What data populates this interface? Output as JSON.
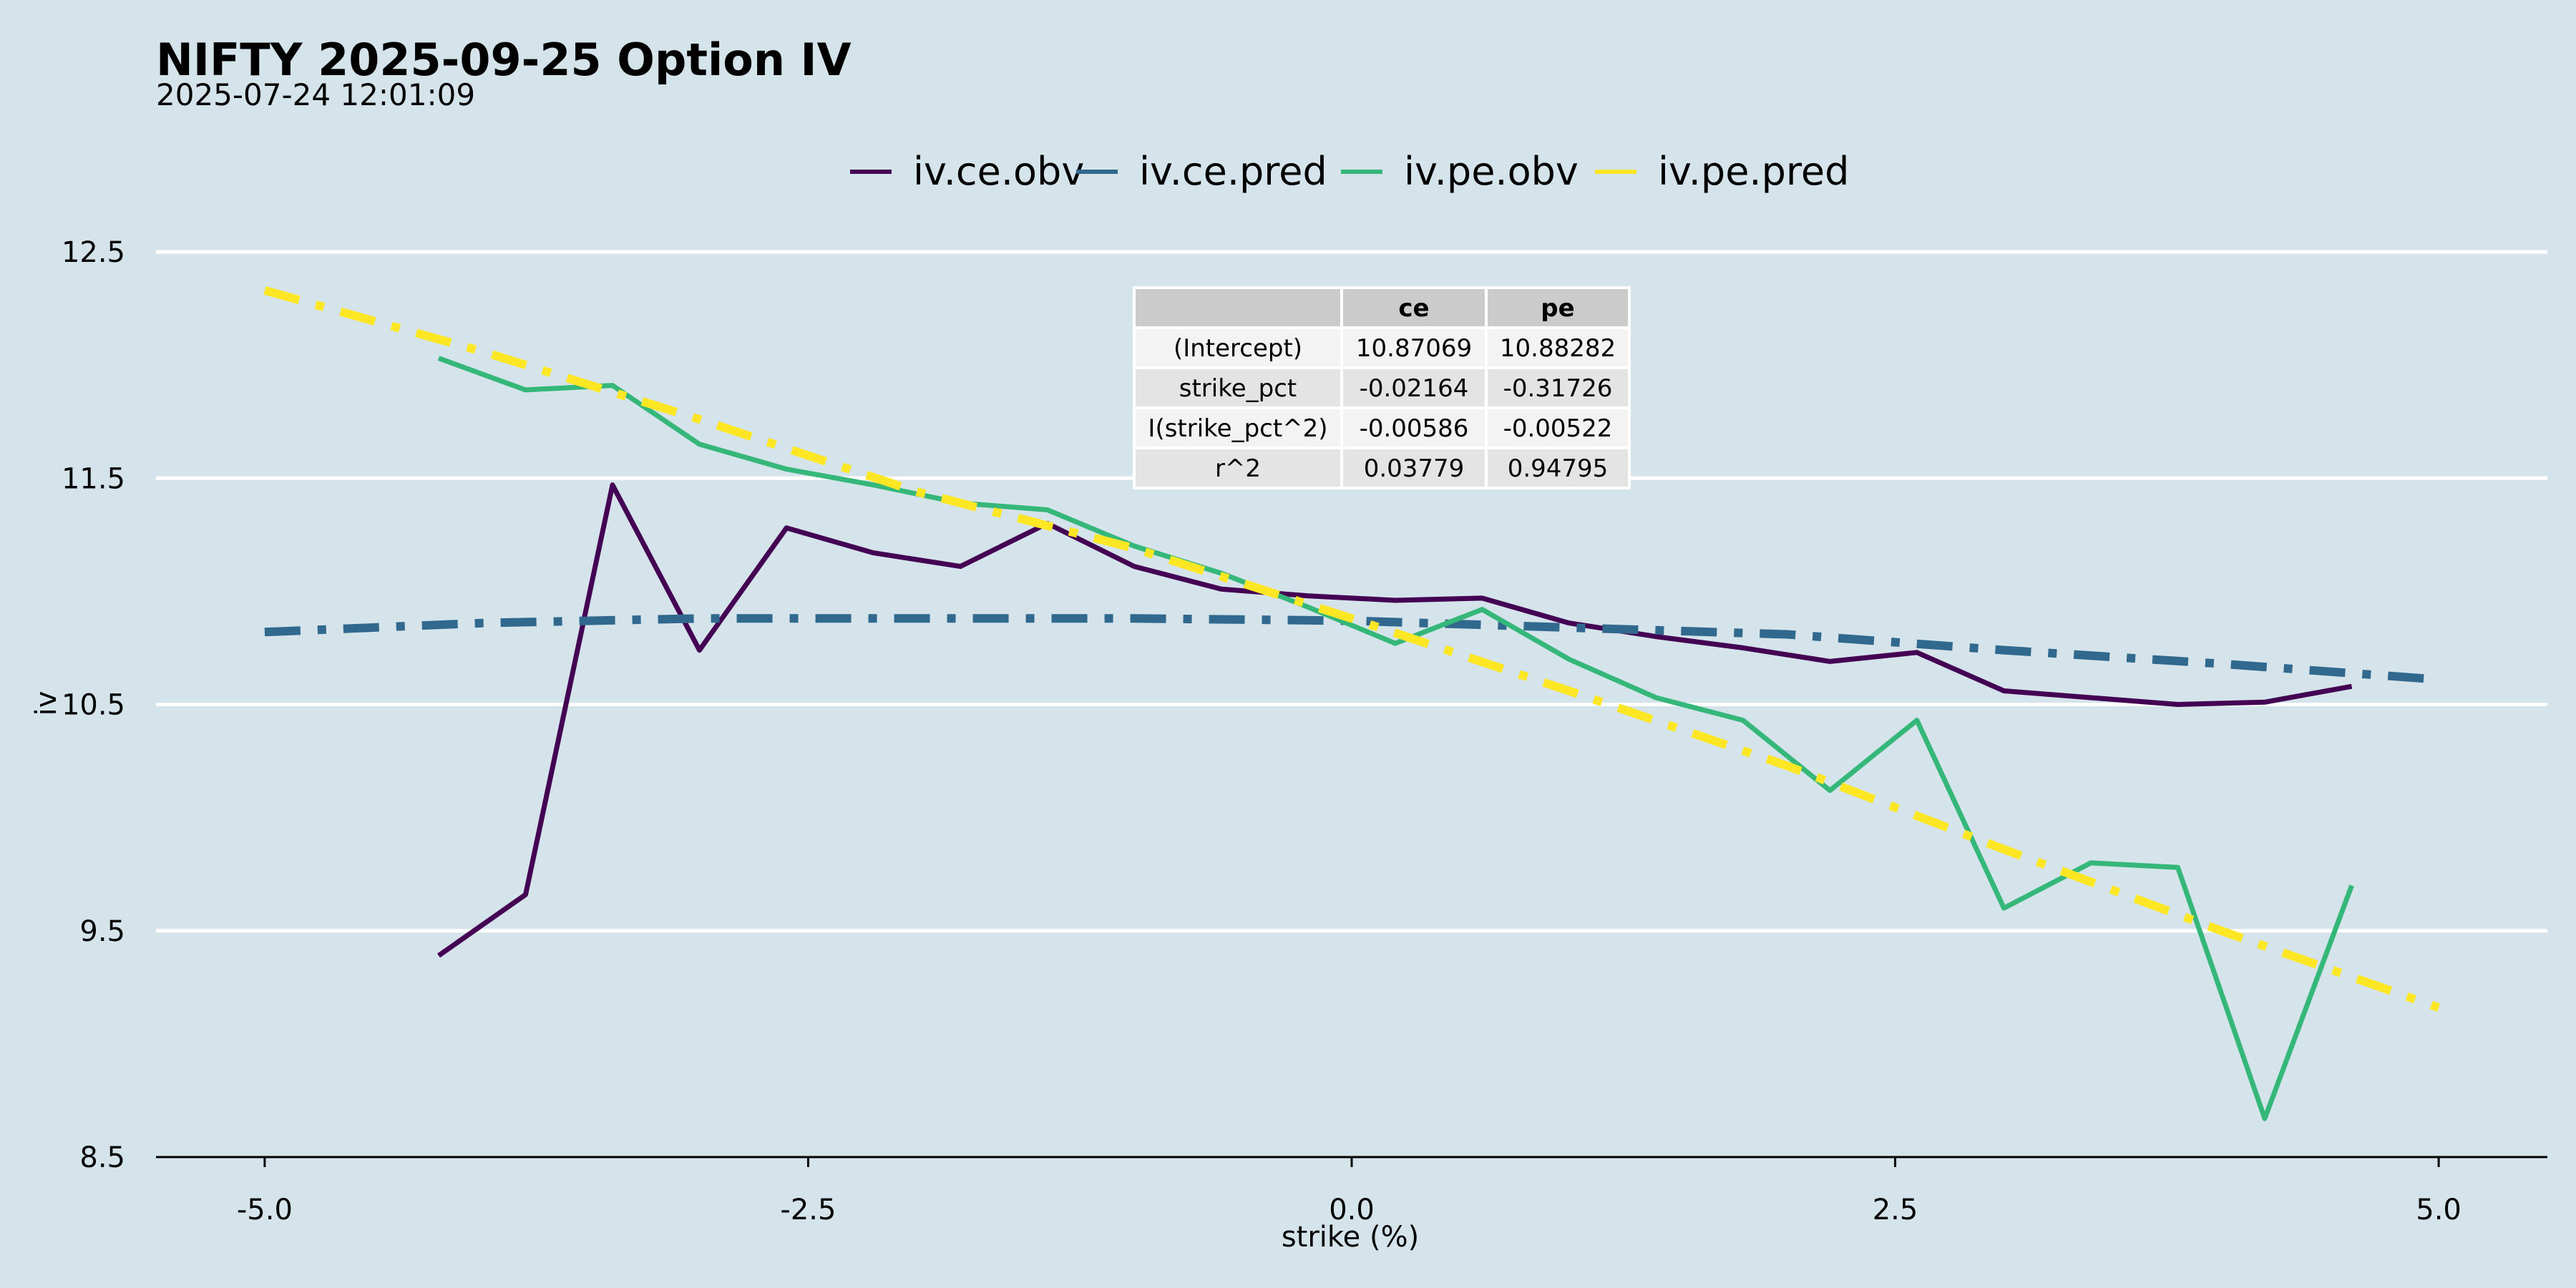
{
  "title": "NIFTY 2025-09-25 Option IV",
  "subtitle": "2025-07-24 12:01:09",
  "colors": {
    "background": "#d5e4eb",
    "gridline": "#ffffff",
    "iv.ce.obv": "#440154",
    "iv.ce.pred": "#31688e",
    "iv.pe.obv": "#35b779",
    "iv.pe.pred": "#fde725"
  },
  "chart_data": {
    "type": "line",
    "xlabel": "strike (%)",
    "ylabel": "iv",
    "xlim": [
      -5.5,
      5.5
    ],
    "ylim": [
      8.5,
      12.5
    ],
    "xticks": [
      "-5.0",
      "-2.5",
      "0.0",
      "2.5",
      "5.0"
    ],
    "yticks": [
      "8.5",
      "9.5",
      "10.5",
      "11.5",
      "12.5"
    ],
    "grid": "horizontal major",
    "legend_position": "top",
    "legend": [
      "iv.ce.obv",
      "iv.ce.pred",
      "iv.pe.obv",
      "iv.pe.pred"
    ],
    "series": [
      {
        "name": "iv.ce.obv",
        "style": "solid",
        "x": [
          -4.2,
          -3.8,
          -3.4,
          -3.0,
          -2.6,
          -2.2,
          -1.8,
          -1.4,
          -1.0,
          -0.6,
          -0.2,
          0.2,
          0.6,
          1.0,
          1.4,
          1.8,
          2.2,
          2.6,
          3.0,
          3.4,
          3.8,
          4.2,
          4.6
        ],
        "y": [
          9.39,
          9.66,
          11.47,
          10.74,
          11.28,
          11.17,
          11.11,
          11.3,
          11.11,
          11.01,
          10.98,
          10.96,
          10.97,
          10.86,
          10.8,
          10.75,
          10.69,
          10.73,
          10.56,
          10.53,
          10.5,
          10.51,
          10.58
        ]
      },
      {
        "name": "iv.ce.pred",
        "style": "dashdot",
        "x": [
          -5.0,
          -4.0,
          -3.0,
          -2.0,
          -1.0,
          0.0,
          1.0,
          2.0,
          3.0,
          4.0,
          5.0
        ],
        "y": [
          10.82,
          10.86,
          10.88,
          10.88,
          10.88,
          10.87,
          10.84,
          10.81,
          10.74,
          10.68,
          10.61
        ]
      },
      {
        "name": "iv.pe.obv",
        "style": "solid",
        "x": [
          -4.2,
          -3.8,
          -3.4,
          -3.0,
          -2.6,
          -2.2,
          -1.8,
          -1.4,
          -1.0,
          -0.6,
          -0.2,
          0.2,
          0.6,
          1.0,
          1.4,
          1.8,
          2.2,
          2.6,
          3.0,
          3.4,
          3.8,
          4.2,
          4.6
        ],
        "y": [
          12.03,
          11.89,
          11.91,
          11.65,
          11.54,
          11.47,
          11.39,
          11.36,
          11.2,
          11.08,
          10.93,
          10.77,
          10.92,
          10.7,
          10.53,
          10.43,
          10.12,
          10.43,
          9.6,
          9.8,
          9.78,
          8.67,
          9.7
        ]
      },
      {
        "name": "iv.pe.pred",
        "style": "dashdot",
        "x": [
          -5.0,
          -4.0,
          -3.0,
          -2.0,
          -1.0,
          0.0,
          1.0,
          2.0,
          3.0,
          4.0,
          5.0
        ],
        "y": [
          12.33,
          12.06,
          11.76,
          11.44,
          11.19,
          10.88,
          10.56,
          10.23,
          9.86,
          9.5,
          9.16
        ]
      }
    ],
    "table": {
      "columns": [
        "",
        "ce",
        "pe"
      ],
      "rows": [
        [
          "(Intercept)",
          "10.87069",
          "10.88282"
        ],
        [
          "strike_pct",
          "-0.02164",
          "-0.31726"
        ],
        [
          "I(strike_pct^2)",
          "-0.00586",
          "-0.00522"
        ],
        [
          "r^2",
          "0.03779",
          "0.94795"
        ]
      ]
    }
  }
}
